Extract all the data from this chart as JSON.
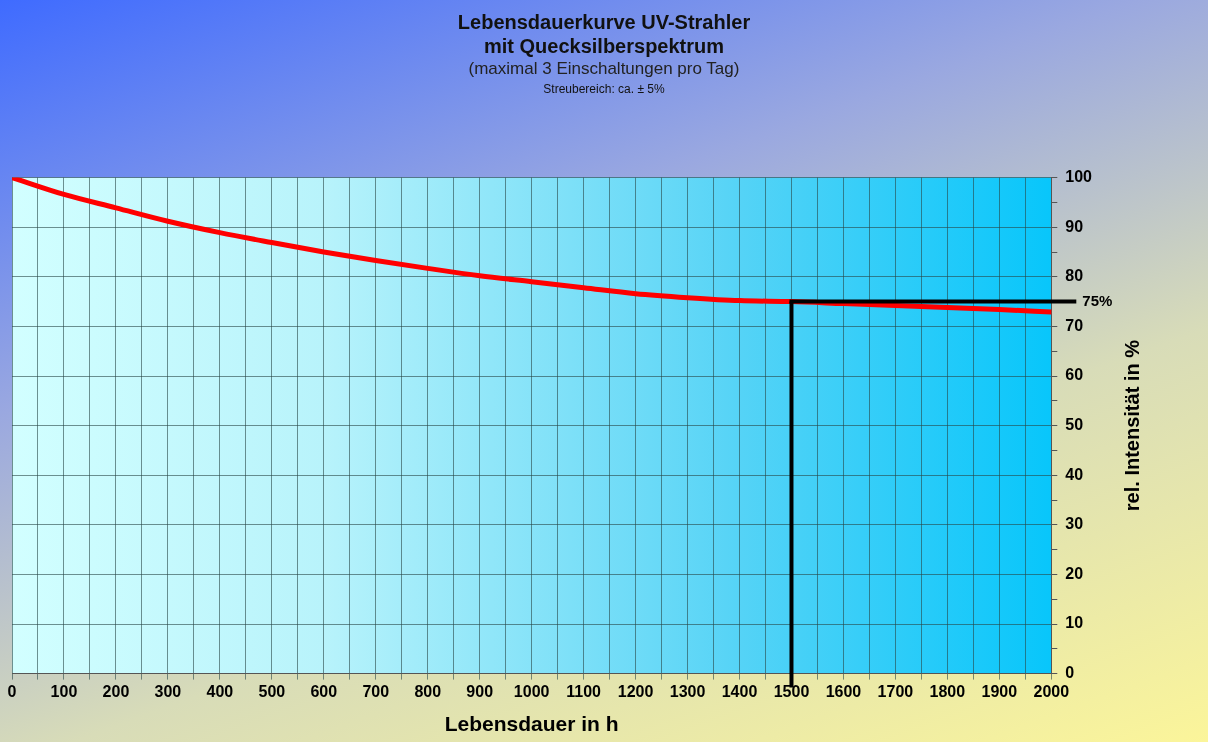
{
  "chart_data": {
    "type": "line",
    "title": "Lebensdauerkurve UV-Strahler mit Quecksilberspektrum",
    "subtitle": "(maximal 3 Einschaltungen pro Tag)",
    "annotations": [
      "Streubereich: ca. ± 5%"
    ],
    "xlabel": "Lebensdauer in h",
    "ylabel": "rel. Intensität in %",
    "x": [
      0,
      100,
      200,
      300,
      400,
      500,
      600,
      700,
      800,
      900,
      1000,
      1100,
      1200,
      1300,
      1400,
      1500,
      1600,
      1700,
      1800,
      1900,
      2000
    ],
    "series": [
      {
        "color": "#ff0000",
        "values": [
          100,
          96.6,
          93.9,
          91.2,
          88.9,
          86.9,
          85.0,
          83.3,
          81.7,
          80.2,
          79.0,
          77.8,
          76.6,
          75.8,
          75.2,
          75.0,
          74.6,
          74.2,
          73.8,
          73.4,
          72.9
        ]
      }
    ],
    "xlim": [
      0,
      2000
    ],
    "xticks": [
      0,
      {
        "value": 50,
        "label": null
      },
      100,
      {
        "value": 150,
        "label": null
      },
      200,
      {
        "value": 250,
        "label": null
      },
      300,
      {
        "value": 350,
        "label": null
      },
      400,
      {
        "value": 450,
        "label": null
      },
      500,
      {
        "value": 550,
        "label": null
      },
      600,
      {
        "value": 650,
        "label": null
      },
      700,
      {
        "value": 750,
        "label": null
      },
      800,
      {
        "value": 850,
        "label": null
      },
      900,
      {
        "value": 950,
        "label": null
      },
      1000,
      {
        "value": 1050,
        "label": null
      },
      1100,
      {
        "value": 1150,
        "label": null
      },
      1200,
      {
        "value": 1250,
        "label": null
      },
      1300,
      {
        "value": 1350,
        "label": null
      },
      1400,
      {
        "value": 1450,
        "label": null
      },
      1500,
      {
        "value": 1550,
        "label": null
      },
      1600,
      {
        "value": 1650,
        "label": null
      },
      1700,
      {
        "value": 1750,
        "label": null
      },
      1800,
      {
        "value": 1850,
        "label": null
      },
      1900,
      {
        "value": 1950,
        "label": null
      },
      2000
    ],
    "ylim": [
      0,
      100
    ],
    "yticks": [
      0,
      {
        "value": 5,
        "label": null
      },
      10,
      {
        "value": 15,
        "label": null
      },
      20,
      {
        "value": 25,
        "label": null
      },
      30,
      {
        "value": 35,
        "label": null
      },
      40,
      {
        "value": 45,
        "label": null
      },
      50,
      {
        "value": 55,
        "label": null
      },
      60,
      {
        "value": 65,
        "label": null
      },
      70,
      {
        "value": 75,
        "label": null
      },
      80,
      {
        "value": 85,
        "label": null
      },
      90,
      {
        "value": 95,
        "label": null
      },
      100
    ],
    "ref_lines": [
      {
        "axis": "y",
        "value": 75,
        "label": "75%",
        "color": "#000000"
      },
      {
        "axis": "x",
        "value": 1500,
        "color": "#000000"
      }
    ],
    "grid": true,
    "legend": false,
    "marker": "none",
    "line_style": "solid"
  }
}
